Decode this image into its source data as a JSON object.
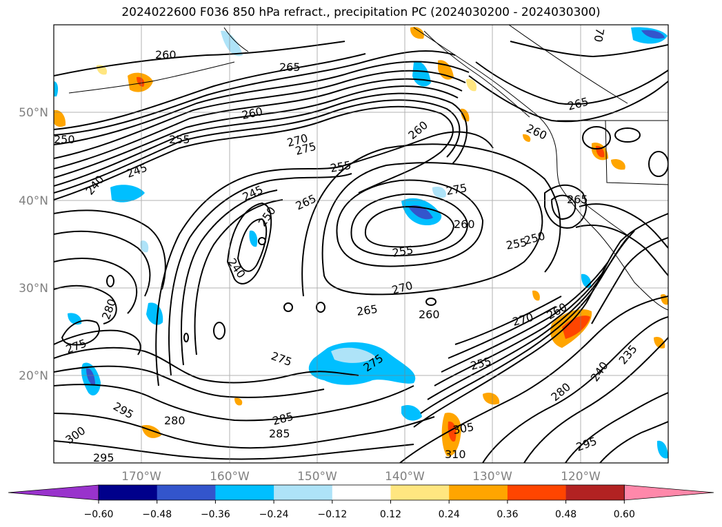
{
  "title": "2024022600 F036 850 hPa refract., precipitation PC (2024030200 - 2024030300)",
  "latitude_labels": [
    "50°N",
    "40°N",
    "30°N",
    "20°N"
  ],
  "longitude_labels": [
    "170°W",
    "160°W",
    "150°W",
    "140°W",
    "130°W",
    "120°W"
  ],
  "contour_labels": [
    {
      "text": "260"
    },
    {
      "text": "265"
    },
    {
      "text": "260"
    },
    {
      "text": "250"
    },
    {
      "text": "255"
    },
    {
      "text": "270"
    },
    {
      "text": "275"
    },
    {
      "text": "260"
    },
    {
      "text": "245"
    },
    {
      "text": "240"
    },
    {
      "text": "255"
    },
    {
      "text": "245"
    },
    {
      "text": "265"
    },
    {
      "text": "275"
    },
    {
      "text": "250"
    },
    {
      "text": "260"
    },
    {
      "text": "255"
    },
    {
      "text": "240"
    },
    {
      "text": "255"
    },
    {
      "text": "270"
    },
    {
      "text": "265"
    },
    {
      "text": "260"
    },
    {
      "text": "280"
    },
    {
      "text": "275"
    },
    {
      "text": "270"
    },
    {
      "text": "275"
    },
    {
      "text": "275"
    },
    {
      "text": "255"
    },
    {
      "text": "260"
    },
    {
      "text": "285"
    },
    {
      "text": "285"
    },
    {
      "text": "280"
    },
    {
      "text": "295"
    },
    {
      "text": "300"
    },
    {
      "text": "295"
    },
    {
      "text": "305"
    },
    {
      "text": "310"
    },
    {
      "text": "280"
    },
    {
      "text": "240"
    },
    {
      "text": "235"
    },
    {
      "text": "295"
    },
    {
      "text": "265"
    },
    {
      "text": "265"
    },
    {
      "text": "260"
    },
    {
      "text": "250"
    },
    {
      "text": "70"
    }
  ],
  "colorbar": {
    "ticks": [
      "−0.60",
      "−0.48",
      "−0.36",
      "−0.24",
      "−0.12",
      "0.12",
      "0.24",
      "0.36",
      "0.48",
      "0.60"
    ],
    "colors": [
      "#9933cc",
      "#00008b",
      "#3355cc",
      "#00bfff",
      "#aee3f8",
      "#ffffff",
      "#ffe680",
      "#ffa500",
      "#ff4500",
      "#b22222",
      "#ff88aa"
    ]
  },
  "colors": {
    "precip_positive_light": "#ffe680",
    "precip_positive": "#ffa500",
    "precip_positive_strong": "#ff4500",
    "precip_negative_light": "#aee3f8",
    "precip_negative": "#00bfff",
    "precip_negative_strong": "#3355cc"
  }
}
